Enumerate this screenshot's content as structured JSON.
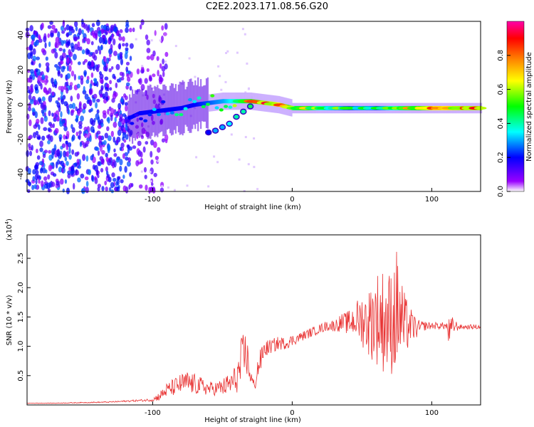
{
  "title": "C2E2.2023.171.08.56.G20",
  "chart_data": [
    {
      "type": "heatmap",
      "xlabel": "Height of straight line (km)",
      "ylabel": "Frequency (Hz)",
      "xlim": [
        -190,
        135
      ],
      "ylim": [
        -50,
        48
      ],
      "xticks": [
        -100,
        0,
        100
      ],
      "yticks": [
        -40,
        -20,
        0,
        20,
        40
      ],
      "grid": false,
      "colorbar": {
        "label": "Normalized spectral amplitude",
        "range": [
          0,
          1
        ],
        "ticks": [
          0.0,
          0.2,
          0.4,
          0.6,
          0.8
        ],
        "tick_labels": [
          "0.0",
          "0.2",
          "0.4",
          "0.6",
          "0.8"
        ],
        "colormap": [
          "#ffffff",
          "#9900ff",
          "#0000ff",
          "#00ffff",
          "#00ff00",
          "#ffff00",
          "#ff8000",
          "#ff0000",
          "#ff00aa"
        ]
      },
      "ridge": {
        "x": [
          -118,
          -110,
          -100,
          -90,
          -80,
          -70,
          -60,
          -50,
          -40,
          -30,
          -20,
          -10,
          0,
          10,
          20,
          30,
          40,
          50,
          60,
          70,
          80,
          90,
          100,
          110,
          120,
          135
        ],
        "frequency": [
          -8,
          -5,
          -4,
          -3,
          -2,
          0,
          1,
          2,
          2,
          2,
          1,
          0,
          -2,
          -2,
          -2,
          -2,
          -2,
          -2,
          -2,
          -2,
          -2,
          -2,
          -2,
          -2,
          -2,
          -2
        ],
        "amplitude": [
          0.2,
          0.25,
          0.3,
          0.35,
          0.4,
          0.45,
          0.5,
          0.55,
          0.65,
          0.75,
          0.85,
          0.9,
          0.7,
          0.75,
          0.6,
          0.55,
          0.5,
          0.55,
          0.5,
          0.6,
          0.7,
          0.75,
          0.9,
          0.9,
          0.85,
          0.85
        ]
      },
      "secondary_branch": {
        "x": [
          -60,
          -55,
          -50,
          -45,
          -40,
          -35,
          -30
        ],
        "frequency": [
          -16,
          -15,
          -13,
          -11,
          -7,
          -4,
          -1
        ],
        "amplitude": [
          0.2,
          0.3,
          0.3,
          0.35,
          0.4,
          0.4,
          0.45
        ]
      },
      "noise_region_x": [
        -190,
        -115
      ]
    },
    {
      "type": "line",
      "xlabel": "Height of straight line (km)",
      "ylabel": "SNR (10 * v/v)",
      "y_multiplier_label": "(x10",
      "y_multiplier_exp": "4",
      "y_multiplier_close": ")",
      "xlim": [
        -190,
        135
      ],
      "ylim": [
        0,
        29000
      ],
      "xticks": [
        -100,
        0,
        100
      ],
      "yticks": [
        5000,
        10000,
        15000,
        20000,
        25000
      ],
      "ytick_labels": [
        "0.5",
        "1.0",
        "1.5",
        "2.0",
        "2.5"
      ],
      "color": "#e83030",
      "series": [
        {
          "x": [
            -190,
            -170,
            -150,
            -130,
            -115,
            -105,
            -100,
            -95,
            -90,
            -85,
            -80,
            -75,
            -70,
            -65,
            -60,
            -55,
            -50,
            -45,
            -40,
            -36,
            -33,
            -30,
            -27,
            -25,
            -22,
            -20,
            -15,
            -10,
            -5,
            0,
            5,
            10,
            15,
            20,
            25,
            30,
            35,
            40,
            45,
            50,
            55,
            60,
            65,
            70,
            75,
            80,
            85,
            90,
            95,
            100,
            105,
            110,
            113,
            115,
            120,
            125,
            130,
            135
          ],
          "y": [
            300,
            300,
            400,
            500,
            700,
            800,
            900,
            1500,
            2500,
            3000,
            3500,
            3800,
            3500,
            3200,
            2800,
            2800,
            3000,
            3500,
            4500,
            7000,
            9000,
            5000,
            3000,
            6000,
            8000,
            9500,
            10000,
            10500,
            10500,
            11000,
            11500,
            12000,
            12500,
            13000,
            13500,
            13500,
            14000,
            14000,
            14500,
            14500,
            14000,
            15000,
            14500,
            14000,
            16000,
            13500,
            13500,
            13000,
            13500,
            13500,
            13500,
            13500,
            12000,
            13500,
            13300,
            13300,
            13300,
            13300
          ],
          "spread": [
            50,
            50,
            80,
            100,
            150,
            200,
            300,
            800,
            1200,
            1500,
            1800,
            2000,
            1800,
            1500,
            1200,
            1200,
            1500,
            2000,
            2500,
            5000,
            4000,
            1500,
            1000,
            2000,
            2000,
            1500,
            1200,
            1200,
            1000,
            1000,
            800,
            800,
            800,
            800,
            900,
            1000,
            1500,
            2000,
            3000,
            4500,
            6000,
            8000,
            9000,
            9000,
            11000,
            6000,
            3000,
            1500,
            800,
            600,
            600,
            600,
            3000,
            1500,
            400,
            400,
            400,
            400
          ]
        }
      ]
    }
  ]
}
